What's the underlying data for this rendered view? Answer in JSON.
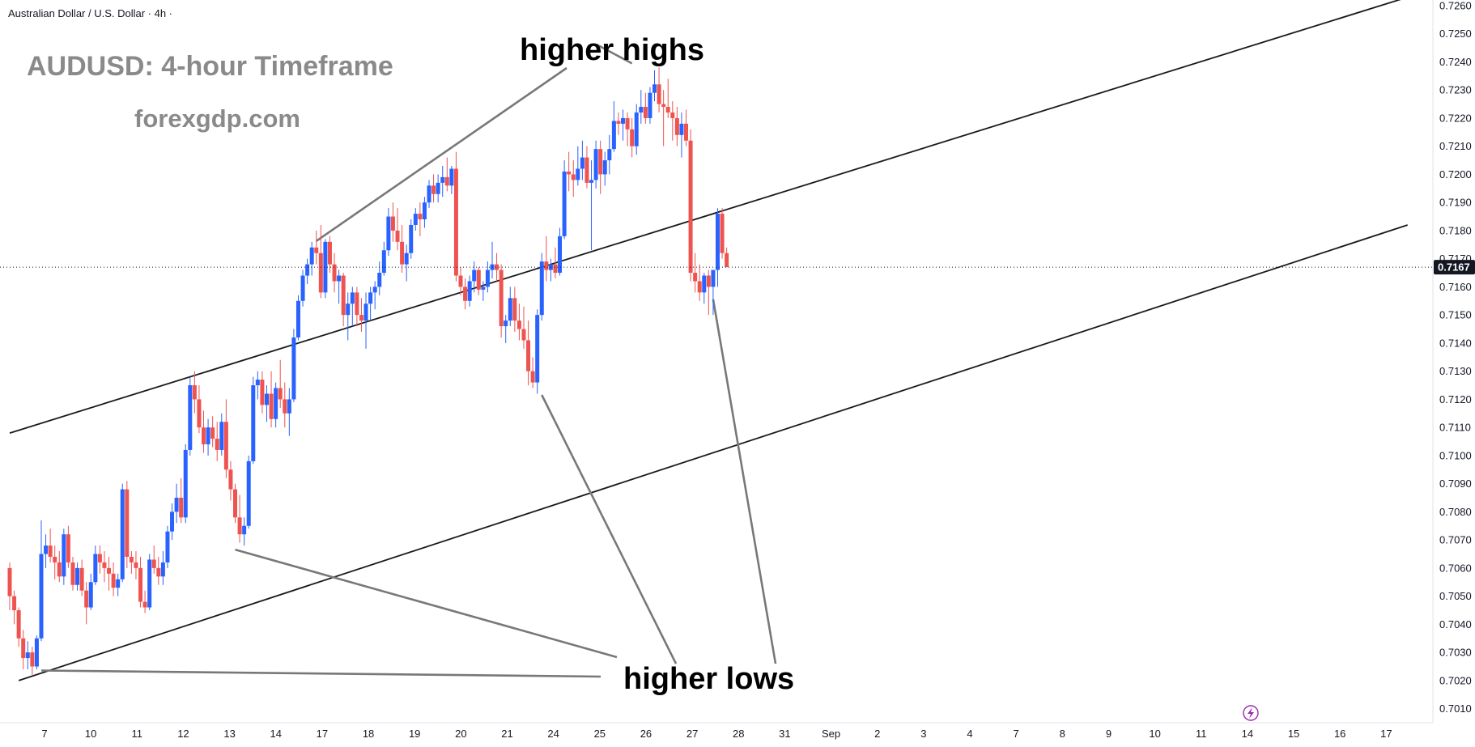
{
  "header": {
    "symbol_line": "Australian Dollar / U.S. Dollar · 4h ·"
  },
  "branding": {
    "title": "AUDUSD: 4-hour Timeframe",
    "site": "forexgdp.com"
  },
  "annotations": {
    "higher_highs": "higher highs",
    "higher_lows": "higher lows"
  },
  "colors": {
    "bullish": "#2962ff",
    "bearish": "#ef5350",
    "trendline": "#1a1a1a",
    "pointer": "#787878",
    "last_price_bg": "#131722",
    "replay_icon": "#9c27b0"
  },
  "icons": {
    "replay": "lightning-icon"
  },
  "chart_data": {
    "type": "candlestick",
    "ylim": [
      0.7005,
      0.7262
    ],
    "y_ticks": [
      "0.7010",
      "0.7020",
      "0.7030",
      "0.7040",
      "0.7050",
      "0.7060",
      "0.7070",
      "0.7080",
      "0.7090",
      "0.7100",
      "0.7110",
      "0.7120",
      "0.7130",
      "0.7140",
      "0.7150",
      "0.7160",
      "0.7170",
      "0.7180",
      "0.7190",
      "0.7200",
      "0.7210",
      "0.7220",
      "0.7230",
      "0.7240",
      "0.7250",
      "0.7260"
    ],
    "x_ticks": [
      "7",
      "10",
      "11",
      "12",
      "13",
      "14",
      "17",
      "18",
      "19",
      "20",
      "21",
      "24",
      "25",
      "26",
      "27",
      "28",
      "31",
      "Sep",
      "2",
      "3",
      "4",
      "7",
      "8",
      "9",
      "10",
      "11",
      "14",
      "15",
      "16",
      "17"
    ],
    "last_price": "0.7167",
    "last_price_value": 0.7167,
    "candles": [
      [
        0.706,
        0.7062,
        0.7045,
        0.705
      ],
      [
        0.705,
        0.7052,
        0.704,
        0.7045
      ],
      [
        0.7045,
        0.7046,
        0.7032,
        0.7035
      ],
      [
        0.7035,
        0.7038,
        0.7024,
        0.7028
      ],
      [
        0.7028,
        0.7034,
        0.7024,
        0.703
      ],
      [
        0.703,
        0.7032,
        0.7022,
        0.7025
      ],
      [
        0.7025,
        0.7036,
        0.7024,
        0.7035
      ],
      [
        0.7035,
        0.7077,
        0.7034,
        0.7065
      ],
      [
        0.7065,
        0.7072,
        0.706,
        0.7068
      ],
      [
        0.7068,
        0.7074,
        0.7062,
        0.7064
      ],
      [
        0.7064,
        0.7068,
        0.7056,
        0.7062
      ],
      [
        0.7062,
        0.7066,
        0.7055,
        0.7057
      ],
      [
        0.7057,
        0.7074,
        0.7054,
        0.7072
      ],
      [
        0.7072,
        0.7075,
        0.706,
        0.7062
      ],
      [
        0.7062,
        0.7064,
        0.7052,
        0.7054
      ],
      [
        0.7054,
        0.7062,
        0.7052,
        0.706
      ],
      [
        0.706,
        0.7063,
        0.705,
        0.7052
      ],
      [
        0.7052,
        0.7055,
        0.704,
        0.7046
      ],
      [
        0.7046,
        0.7058,
        0.7045,
        0.7055
      ],
      [
        0.7055,
        0.7068,
        0.7054,
        0.7065
      ],
      [
        0.7065,
        0.7068,
        0.7058,
        0.7062
      ],
      [
        0.7062,
        0.7066,
        0.7055,
        0.706
      ],
      [
        0.706,
        0.7064,
        0.7052,
        0.7058
      ],
      [
        0.7058,
        0.7062,
        0.705,
        0.7053
      ],
      [
        0.7053,
        0.7058,
        0.705,
        0.7056
      ],
      [
        0.7056,
        0.709,
        0.7055,
        0.7088
      ],
      [
        0.7088,
        0.7091,
        0.706,
        0.7064
      ],
      [
        0.7064,
        0.7066,
        0.7058,
        0.7062
      ],
      [
        0.7062,
        0.7066,
        0.7056,
        0.706
      ],
      [
        0.706,
        0.7064,
        0.7046,
        0.7048
      ],
      [
        0.7048,
        0.7052,
        0.7044,
        0.7046
      ],
      [
        0.7046,
        0.7065,
        0.7045,
        0.7063
      ],
      [
        0.7063,
        0.7068,
        0.7058,
        0.706
      ],
      [
        0.706,
        0.7064,
        0.7054,
        0.7057
      ],
      [
        0.7057,
        0.7066,
        0.7054,
        0.7062
      ],
      [
        0.7062,
        0.7075,
        0.706,
        0.7073
      ],
      [
        0.7073,
        0.7083,
        0.707,
        0.708
      ],
      [
        0.708,
        0.709,
        0.7076,
        0.7085
      ],
      [
        0.7085,
        0.7092,
        0.7076,
        0.7078
      ],
      [
        0.7078,
        0.7104,
        0.7076,
        0.7102
      ],
      [
        0.7102,
        0.7128,
        0.71,
        0.7125
      ],
      [
        0.7125,
        0.713,
        0.7115,
        0.712
      ],
      [
        0.712,
        0.7125,
        0.7108,
        0.711
      ],
      [
        0.711,
        0.7116,
        0.7101,
        0.7104
      ],
      [
        0.7104,
        0.7113,
        0.71,
        0.711
      ],
      [
        0.711,
        0.7114,
        0.7103,
        0.7106
      ],
      [
        0.7106,
        0.7112,
        0.7098,
        0.7102
      ],
      [
        0.7102,
        0.7115,
        0.71,
        0.7112
      ],
      [
        0.7112,
        0.712,
        0.7092,
        0.7095
      ],
      [
        0.7095,
        0.7098,
        0.7084,
        0.7088
      ],
      [
        0.7088,
        0.709,
        0.7076,
        0.7078
      ],
      [
        0.7078,
        0.7086,
        0.7069,
        0.7072
      ],
      [
        0.7072,
        0.7078,
        0.7068,
        0.7075
      ],
      [
        0.7075,
        0.71,
        0.7074,
        0.7098
      ],
      [
        0.7098,
        0.7128,
        0.7097,
        0.7125
      ],
      [
        0.7125,
        0.713,
        0.712,
        0.7127
      ],
      [
        0.7127,
        0.713,
        0.7115,
        0.7118
      ],
      [
        0.7118,
        0.7125,
        0.7112,
        0.7122
      ],
      [
        0.7122,
        0.713,
        0.711,
        0.7113
      ],
      [
        0.7113,
        0.7126,
        0.711,
        0.7124
      ],
      [
        0.7124,
        0.7134,
        0.7117,
        0.712
      ],
      [
        0.712,
        0.7126,
        0.711,
        0.7115
      ],
      [
        0.7115,
        0.7124,
        0.7107,
        0.712
      ],
      [
        0.712,
        0.7145,
        0.7119,
        0.7142
      ],
      [
        0.7142,
        0.7157,
        0.7141,
        0.7155
      ],
      [
        0.7155,
        0.7166,
        0.7153,
        0.7164
      ],
      [
        0.7164,
        0.717,
        0.7161,
        0.7168
      ],
      [
        0.7168,
        0.7176,
        0.7164,
        0.7174
      ],
      [
        0.7174,
        0.718,
        0.7168,
        0.7172
      ],
      [
        0.7172,
        0.7182,
        0.7156,
        0.7158
      ],
      [
        0.7158,
        0.7177,
        0.7156,
        0.7176
      ],
      [
        0.7176,
        0.7178,
        0.7165,
        0.7168
      ],
      [
        0.7168,
        0.7172,
        0.7158,
        0.7162
      ],
      [
        0.7162,
        0.7166,
        0.7154,
        0.7164
      ],
      [
        0.7164,
        0.7165,
        0.7146,
        0.715
      ],
      [
        0.715,
        0.7158,
        0.7141,
        0.7154
      ],
      [
        0.7154,
        0.716,
        0.7146,
        0.7158
      ],
      [
        0.7158,
        0.716,
        0.7146,
        0.715
      ],
      [
        0.715,
        0.7156,
        0.7144,
        0.7148
      ],
      [
        0.7148,
        0.7158,
        0.7138,
        0.7154
      ],
      [
        0.7154,
        0.716,
        0.7148,
        0.7158
      ],
      [
        0.7158,
        0.7162,
        0.7152,
        0.716
      ],
      [
        0.716,
        0.7169,
        0.7157,
        0.7165
      ],
      [
        0.7165,
        0.7176,
        0.7164,
        0.7173
      ],
      [
        0.7173,
        0.7188,
        0.7171,
        0.7185
      ],
      [
        0.7185,
        0.719,
        0.7176,
        0.718
      ],
      [
        0.718,
        0.7188,
        0.7173,
        0.7176
      ],
      [
        0.7176,
        0.7182,
        0.7165,
        0.7168
      ],
      [
        0.7168,
        0.7175,
        0.7162,
        0.7172
      ],
      [
        0.7172,
        0.7184,
        0.717,
        0.7182
      ],
      [
        0.7182,
        0.7188,
        0.718,
        0.7186
      ],
      [
        0.7186,
        0.719,
        0.7178,
        0.7184
      ],
      [
        0.7184,
        0.7192,
        0.7181,
        0.719
      ],
      [
        0.719,
        0.7198,
        0.7188,
        0.7196
      ],
      [
        0.7196,
        0.72,
        0.719,
        0.7193
      ],
      [
        0.7193,
        0.72,
        0.719,
        0.7197
      ],
      [
        0.7197,
        0.7203,
        0.7192,
        0.7199
      ],
      [
        0.7199,
        0.7206,
        0.7194,
        0.7196
      ],
      [
        0.7196,
        0.7203,
        0.7193,
        0.7202
      ],
      [
        0.7202,
        0.7208,
        0.7162,
        0.7164
      ],
      [
        0.7164,
        0.7167,
        0.7157,
        0.716
      ],
      [
        0.716,
        0.7163,
        0.7152,
        0.7155
      ],
      [
        0.7155,
        0.7164,
        0.7153,
        0.7162
      ],
      [
        0.7162,
        0.7169,
        0.7158,
        0.7166
      ],
      [
        0.7166,
        0.7167,
        0.7157,
        0.7159
      ],
      [
        0.7159,
        0.7162,
        0.7155,
        0.716
      ],
      [
        0.716,
        0.7169,
        0.7158,
        0.7166
      ],
      [
        0.7166,
        0.7176,
        0.7163,
        0.7168
      ],
      [
        0.7168,
        0.7172,
        0.7162,
        0.7166
      ],
      [
        0.7166,
        0.7168,
        0.7142,
        0.7146
      ],
      [
        0.7146,
        0.715,
        0.714,
        0.7148
      ],
      [
        0.7148,
        0.716,
        0.7146,
        0.7156
      ],
      [
        0.7156,
        0.716,
        0.7144,
        0.7148
      ],
      [
        0.7148,
        0.7154,
        0.7141,
        0.7145
      ],
      [
        0.7145,
        0.7153,
        0.7138,
        0.7141
      ],
      [
        0.7141,
        0.7148,
        0.7125,
        0.713
      ],
      [
        0.713,
        0.7135,
        0.7124,
        0.7126
      ],
      [
        0.7126,
        0.7152,
        0.7122,
        0.715
      ],
      [
        0.715,
        0.7172,
        0.7148,
        0.7169
      ],
      [
        0.7169,
        0.7178,
        0.7162,
        0.7166
      ],
      [
        0.7166,
        0.717,
        0.7162,
        0.7168
      ],
      [
        0.7168,
        0.7174,
        0.7163,
        0.7165
      ],
      [
        0.7165,
        0.7181,
        0.7164,
        0.7178
      ],
      [
        0.7178,
        0.7205,
        0.7177,
        0.7201
      ],
      [
        0.7201,
        0.7208,
        0.7194,
        0.72
      ],
      [
        0.72,
        0.7205,
        0.7192,
        0.7198
      ],
      [
        0.7198,
        0.721,
        0.7196,
        0.7202
      ],
      [
        0.7202,
        0.7212,
        0.7198,
        0.7206
      ],
      [
        0.7206,
        0.721,
        0.7195,
        0.7197
      ],
      [
        0.7197,
        0.7205,
        0.7173,
        0.7198
      ],
      [
        0.7198,
        0.7212,
        0.7195,
        0.7209
      ],
      [
        0.7209,
        0.7212,
        0.7193,
        0.72
      ],
      [
        0.72,
        0.7208,
        0.7196,
        0.7205
      ],
      [
        0.7205,
        0.7214,
        0.72,
        0.7209
      ],
      [
        0.7209,
        0.7226,
        0.7208,
        0.7219
      ],
      [
        0.7219,
        0.7222,
        0.7214,
        0.7218
      ],
      [
        0.7218,
        0.7223,
        0.7212,
        0.722
      ],
      [
        0.722,
        0.7222,
        0.721,
        0.7216
      ],
      [
        0.7216,
        0.722,
        0.7206,
        0.721
      ],
      [
        0.721,
        0.7225,
        0.7207,
        0.7222
      ],
      [
        0.7222,
        0.723,
        0.7218,
        0.7224
      ],
      [
        0.7224,
        0.7229,
        0.7218,
        0.722
      ],
      [
        0.722,
        0.7231,
        0.7218,
        0.7229
      ],
      [
        0.7229,
        0.7237,
        0.7226,
        0.7232
      ],
      [
        0.7232,
        0.7238,
        0.7222,
        0.7225
      ],
      [
        0.7225,
        0.723,
        0.721,
        0.7224
      ],
      [
        0.7224,
        0.7234,
        0.722,
        0.7222
      ],
      [
        0.7222,
        0.7226,
        0.7212,
        0.722
      ],
      [
        0.722,
        0.7224,
        0.721,
        0.7214
      ],
      [
        0.7214,
        0.7222,
        0.7206,
        0.7218
      ],
      [
        0.7218,
        0.7223,
        0.721,
        0.7212
      ],
      [
        0.7212,
        0.7216,
        0.7162,
        0.7165
      ],
      [
        0.7165,
        0.7172,
        0.7158,
        0.7162
      ],
      [
        0.7162,
        0.7168,
        0.7155,
        0.7158
      ],
      [
        0.7158,
        0.7165,
        0.7154,
        0.7164
      ],
      [
        0.7164,
        0.7166,
        0.715,
        0.716
      ],
      [
        0.716,
        0.7166,
        0.715,
        0.7166
      ],
      [
        0.7166,
        0.7188,
        0.716,
        0.7186
      ],
      [
        0.7186,
        0.7188,
        0.717,
        0.7172
      ],
      [
        0.7172,
        0.7174,
        0.7167,
        0.7167
      ]
    ],
    "trendlines": [
      {
        "role": "upper-channel",
        "points": [
          [
            0,
            0.7108
          ],
          [
            310,
            0.7263
          ]
        ]
      },
      {
        "role": "lower-channel",
        "points": [
          [
            2,
            0.702
          ],
          [
            310,
            0.7182
          ]
        ]
      }
    ],
    "markers": [
      {
        "label": "higher highs",
        "points": [
          [
            68,
            0.7174
          ],
          [
            138,
            0.7238
          ]
        ]
      },
      {
        "label": "higher lows",
        "points": [
          [
            7,
            0.7025
          ],
          [
            50,
            0.7068
          ],
          [
            118,
            0.7123
          ],
          [
            156,
            0.7157
          ]
        ]
      }
    ]
  }
}
